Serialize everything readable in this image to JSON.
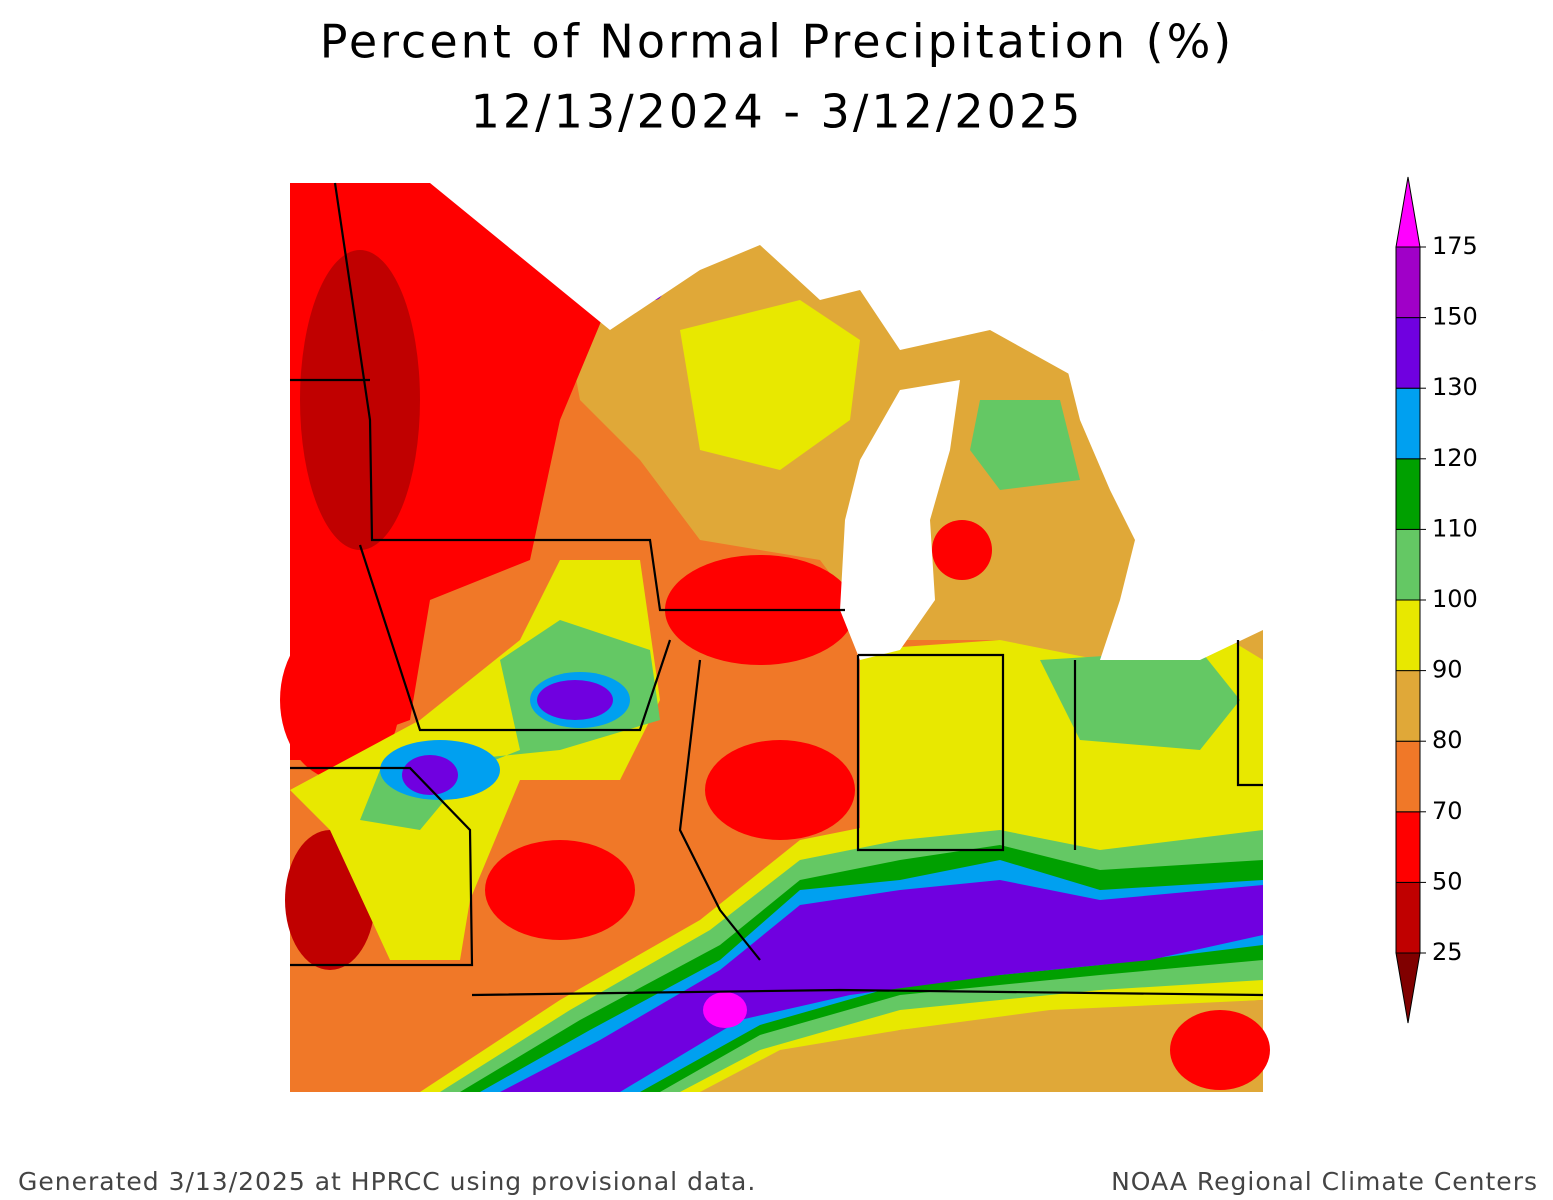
{
  "header": {
    "title": "Percent of Normal Precipitation (%)",
    "subtitle": "12/13/2024 - 3/12/2025"
  },
  "legend": {
    "levels": [
      25,
      50,
      70,
      80,
      90,
      100,
      110,
      120,
      130,
      150,
      175
    ],
    "colors": [
      "#c00000",
      "#ff0000",
      "#f07828",
      "#e0a838",
      "#e8e800",
      "#64c864",
      "#00a000",
      "#00a0f0",
      "#7000e0",
      "#a000c8"
    ],
    "under_color": "#800000",
    "over_color": "#ff00ff"
  },
  "footer": {
    "left": "Generated 3/13/2025 at HPRCC using provisional data.",
    "right": "NOAA Regional Climate Centers"
  }
}
